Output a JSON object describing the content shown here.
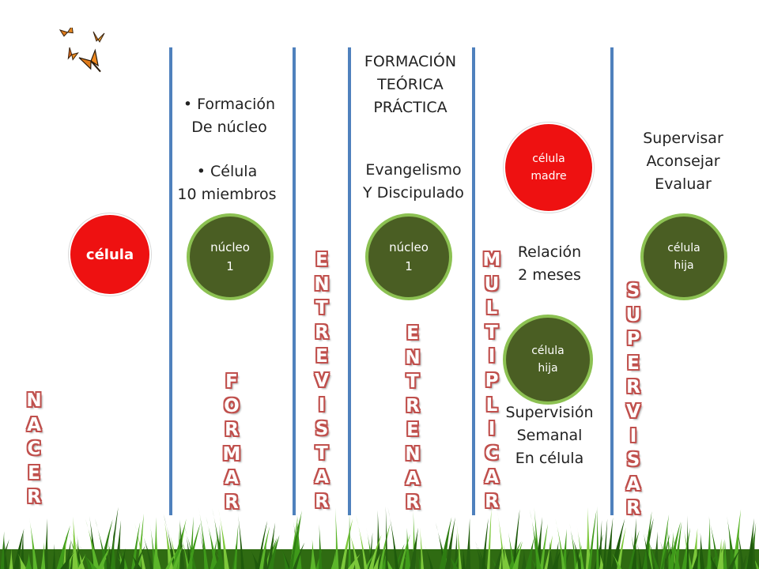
{
  "stages": [
    {
      "word": "NACER"
    },
    {
      "word": "FORMAR"
    },
    {
      "word": "ENTREVISTAR"
    },
    {
      "word": "ENTRENAR"
    },
    {
      "word": "MULTIPLICAR"
    },
    {
      "word": "SUPERVISAR"
    }
  ],
  "circles": {
    "celula": "célula",
    "nucleo1": "núcleo\n1",
    "nucleo2": "núcleo\n1",
    "madre": "célula\nmadre",
    "hija_mid": "célula\nhija",
    "hija_right": "célula\nhija"
  },
  "texts": {
    "formacion_nucleo": "Formación\nDe núcleo",
    "celula_miembros": "Célula\n10 miembros",
    "formacion_teorica": "FORMACIÓN\nTEÓRICA\nPRÁCTICA",
    "evangelismo": "Evangelismo\nY Discipulado",
    "relacion": "Relación\n2 meses",
    "supervision": "Supervisión\nSemanal\nEn célula",
    "supervisar": "Supervisar\nAconsejar\nEvaluar"
  },
  "colors": {
    "divider": "#4f81bd",
    "red_circle": "#ee1111",
    "green_circle": "#4a5e23",
    "green_ring": "#8cc152",
    "word_outline": "#c0504d"
  }
}
